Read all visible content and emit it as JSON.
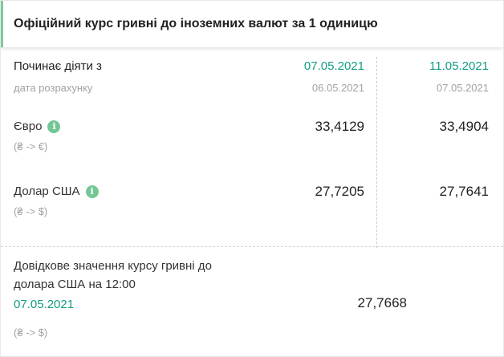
{
  "title": "Офіційний курс гривні до іноземних валют за 1 одиницю",
  "colors": {
    "accent_bar": "#7fca9c",
    "date_green": "#149d84",
    "info_icon_green": "#72c795",
    "muted_gray": "#a2a2a2",
    "text_dark": "#222222"
  },
  "icons": {
    "info": "i"
  },
  "header": {
    "label": "Починає діяти з",
    "sublabel": "дата розрахунку",
    "col1": {
      "effective_date": "07.05.2021",
      "calc_date": "06.05.2021"
    },
    "col2": {
      "effective_date": "11.05.2021",
      "calc_date": "07.05.2021"
    }
  },
  "rows": [
    {
      "name": "Євро",
      "pair": "(₴ -> €)",
      "val1": "33,4129",
      "val2": "33,4904"
    },
    {
      "name": "Долар США",
      "pair": "(₴ -> $)",
      "val1": "27,7205",
      "val2": "27,7641"
    }
  ],
  "reference": {
    "label_line1": "Довідкове значення курсу гривні до",
    "label_line2": "долара США на 12:00",
    "date": "07.05.2021",
    "pair": "(₴ -> $)",
    "value": "27,7668"
  }
}
